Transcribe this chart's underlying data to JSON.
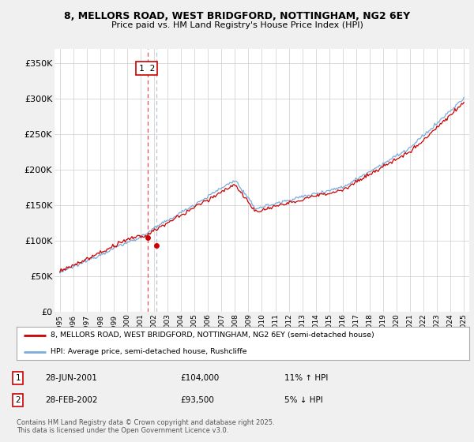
{
  "title1": "8, MELLORS ROAD, WEST BRIDGFORD, NOTTINGHAM, NG2 6EY",
  "title2": "Price paid vs. HM Land Registry's House Price Index (HPI)",
  "legend_red": "8, MELLORS ROAD, WEST BRIDGFORD, NOTTINGHAM, NG2 6EY (semi-detached house)",
  "legend_blue": "HPI: Average price, semi-detached house, Rushcliffe",
  "transaction1_date": "28-JUN-2001",
  "transaction1_price": "£104,000",
  "transaction1_hpi": "11% ↑ HPI",
  "transaction2_date": "28-FEB-2002",
  "transaction2_price": "£93,500",
  "transaction2_hpi": "5% ↓ HPI",
  "footer": "Contains HM Land Registry data © Crown copyright and database right 2025.\nThis data is licensed under the Open Government Licence v3.0.",
  "red_color": "#cc0000",
  "blue_color": "#7aabdb",
  "dash1_color": "#dd3333",
  "dash2_color": "#aabbcc",
  "bg_color": "#f0f0f0",
  "plot_bg": "#ffffff",
  "ylim": [
    0,
    370000
  ],
  "yticks": [
    0,
    50000,
    100000,
    150000,
    200000,
    250000,
    300000,
    350000
  ],
  "transaction1_x": 2001.5,
  "transaction1_y": 104000,
  "transaction2_x": 2002.17,
  "transaction2_y": 93500,
  "xmin": 1994.6,
  "xmax": 2025.4
}
